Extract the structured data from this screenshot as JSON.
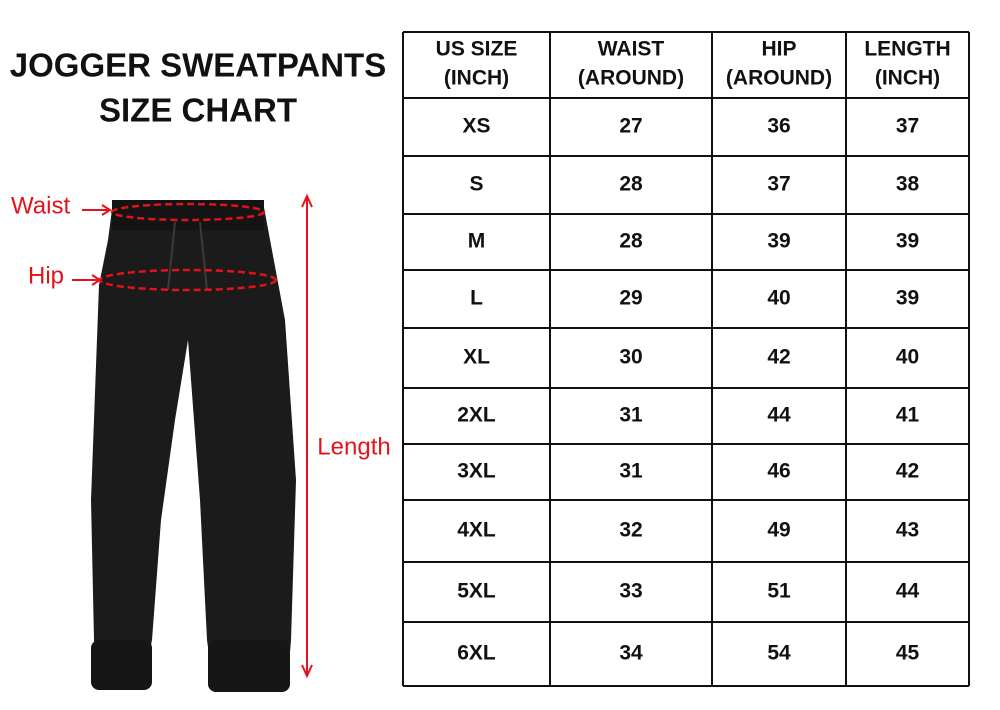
{
  "header": {
    "title": [
      "JOGGER SWEATPANTS",
      "SIZE CHART"
    ]
  },
  "diagram": {
    "waist_label": "Waist",
    "hip_label": "Hip",
    "length_label": "Length"
  },
  "table": {
    "columns": [
      [
        "US SIZE",
        "(INCH)"
      ],
      [
        "WAIST",
        "(AROUND)"
      ],
      [
        "HIP",
        "(AROUND)"
      ],
      [
        "LENGTH",
        "(INCH)"
      ]
    ],
    "rows": [
      [
        "XS",
        27,
        36,
        37
      ],
      [
        "S",
        28,
        37,
        38
      ],
      [
        "M",
        28,
        39,
        39
      ],
      [
        "L",
        29,
        40,
        39
      ],
      [
        "XL",
        30,
        42,
        40
      ],
      [
        "2XL",
        31,
        44,
        41
      ],
      [
        "3XL",
        31,
        46,
        42
      ],
      [
        "4XL",
        32,
        49,
        43
      ],
      [
        "5XL",
        33,
        51,
        44
      ],
      [
        "6XL",
        34,
        54,
        45
      ]
    ]
  }
}
